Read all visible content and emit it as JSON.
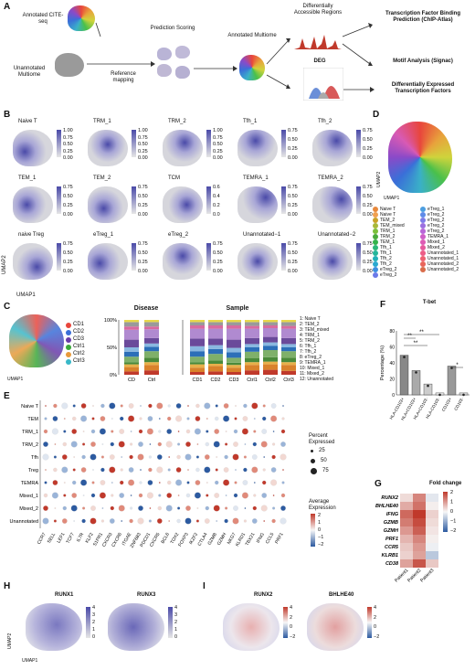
{
  "panelA": {
    "letter": "A",
    "cite": "Annotated CITE-seq",
    "unannotated": "Unannotated Multiome",
    "pred": "Prediction Scoring",
    "refmap": "Reference mapping",
    "annotated": "Annotated Multiome",
    "dar": "Differentially Accessible Regions",
    "deg": "DEG",
    "tfbp": "Transcription Factor Binding Prediction (ChIP-Atlas)",
    "motif": "Motif Analysis (Signac)",
    "detf": "Differentially Expressed Transcription Factors"
  },
  "panelB": {
    "letter": "B",
    "titles": [
      "Naive T",
      "TRM_1",
      "TRM_2",
      "Tfh_1",
      "Tfh_2",
      "TEM_1",
      "TEM_2",
      "TCM",
      "TEMRA_1",
      "TEMRA_2",
      "naive Treg",
      "eTreg_1",
      "eTreg_2",
      "Unannotated−1",
      "Unannotated−2"
    ],
    "ticks_a": [
      "1.00",
      "0.75",
      "0.50",
      "0.25",
      "0.00"
    ],
    "ticks_b": [
      "0.75",
      "0.50",
      "0.25",
      "0.00"
    ],
    "ticks_c": [
      "0.6",
      "0.4",
      "0.2",
      "0.0"
    ],
    "umap1": "UMAP1",
    "umap2": "UMAP2"
  },
  "panelD": {
    "letter": "D",
    "col1": [
      "Naive T",
      "Naive T",
      "TEM_2",
      "TEM_mixed",
      "TRM_1",
      "TRM_2",
      "TEM_1",
      "Tfh_1",
      "Tfh_1",
      "Tfh_2",
      "Tfh_2",
      "eTreg_2",
      "eTreg_2"
    ],
    "col2": [
      "eTreg_1",
      "eTreg_2",
      "eTreg_2",
      "eTreg_2",
      "eTreg_2",
      "TEMRA_1",
      "Mixed_1",
      "Mixed_2",
      "Unannotated_1",
      "Unannotated_1",
      "Unannotated_2",
      "Unannotated_2"
    ],
    "colors1": [
      "#e8893c",
      "#f0a050",
      "#c9a227",
      "#a8b83a",
      "#7bbf3a",
      "#4aaa3a",
      "#34b34a",
      "#2bb877",
      "#25b59a",
      "#22b0b8",
      "#2aa8d0",
      "#3d8fe0",
      "#6b7ae8"
    ],
    "colors2": [
      "#4c9ee0",
      "#5f8be8",
      "#7d7be8",
      "#9b6fe0",
      "#b865d8",
      "#cf5ec8",
      "#dd5bb4",
      "#e65a9d",
      "#ec5c86",
      "#ee6070",
      "#e8655a",
      "#d96c4a"
    ]
  },
  "panelC": {
    "letter": "C",
    "clusters": [
      "CD1",
      "CD2",
      "CD3",
      "Ctrl1",
      "Ctrl2",
      "Ctrl3"
    ],
    "cluster_colors": [
      "#e8463c",
      "#3a6fd8",
      "#6a3aa8",
      "#3aa83a",
      "#e89a3a",
      "#38b8c8"
    ],
    "disease_title": "Disease",
    "sample_title": "Sample",
    "yticks": [
      "100%",
      "50%",
      "0%"
    ],
    "disease_x": [
      "CD",
      "Ctrl"
    ],
    "sample_x": [
      "CD1",
      "CD2",
      "CD3",
      "Ctrl1",
      "Ctrl2",
      "Ctrl3"
    ],
    "legend": [
      "1: Naive T",
      "2: TEM_2",
      "3: TEM_mixed",
      "4: TRM_1",
      "5: TRM_2",
      "6: Tfh_1",
      "7: Tfh_2",
      "8: eTreg_2",
      "9: TEMRA_1",
      "10: Mixed_1",
      "11: Mixed_2",
      "12: Unannotated"
    ]
  },
  "panelE": {
    "letter": "E",
    "rows": [
      "Naive T",
      "TEM",
      "TRM_1",
      "TRM_2",
      "Tfh",
      "Treg",
      "TEMRA",
      "Mixed_1",
      "Mixed_2",
      "Unannotated"
    ],
    "genes": [
      "CCR7",
      "SELL",
      "LEF1",
      "TCF7",
      "IL7R",
      "KLF2",
      "S1PR1",
      "CXCR3",
      "CXCR6",
      "ITGAE",
      "ZNF683",
      "PDCD1",
      "CXCR5",
      "BCL6",
      "TOX2",
      "FOXP3",
      "IKZF2",
      "CTLA4",
      "GZMB",
      "GZMH",
      "NKG7",
      "KLRD1",
      "TBX21",
      "IFNG",
      "CCL5",
      "PRF1"
    ],
    "pct_title": "Percent Expressed",
    "pct": [
      "25",
      "50",
      "75"
    ],
    "avg_title": "Average Expression",
    "avg": [
      "2",
      "1",
      "0",
      "−1",
      "−2"
    ]
  },
  "panelF": {
    "letter": "F",
    "title": "T-bet",
    "ylabel": "Percentage (%)",
    "yticks": [
      "80",
      "60",
      "40",
      "20",
      "0"
    ],
    "sig": [
      "**",
      "**",
      "**",
      "*"
    ],
    "xlabels": [
      "HLA-CD103+",
      "HLA+CD103+",
      "HLA+CD103-",
      "HLA-CD103-",
      "CD103+",
      "CD103-"
    ]
  },
  "panelG": {
    "letter": "G",
    "title": "Fold change",
    "genes": [
      "RUNX2",
      "BHLHE40",
      "IFNG",
      "GZMB",
      "GZMH",
      "PRF1",
      "CCR5",
      "KLRB1",
      "CD38"
    ],
    "patients": [
      "Patient1",
      "Patient2",
      "Patient3"
    ],
    "scale": [
      "2",
      "1",
      "0",
      "−1",
      "−2"
    ]
  },
  "panelH": {
    "letter": "H",
    "g1": "RUNX1",
    "g2": "RUNX3",
    "ticks": [
      "4",
      "3",
      "2",
      "1",
      "0"
    ]
  },
  "panelI": {
    "letter": "I",
    "g1": "RUNX2",
    "g2": "BHLHE40",
    "ticks": [
      "4",
      "2",
      "0",
      "−2"
    ]
  },
  "chart_data": [
    {
      "type": "bar",
      "title": "T-bet",
      "ylabel": "Percentage (%)",
      "categories": [
        "HLA-CD103+",
        "HLA+CD103+",
        "HLA+CD103-",
        "HLA-CD103-",
        "CD103+",
        "CD103-"
      ],
      "values": [
        62,
        38,
        17,
        3,
        45,
        3
      ],
      "ylim": [
        0,
        100
      ]
    },
    {
      "type": "heatmap",
      "title": "Fold change",
      "rows": [
        "RUNX2",
        "BHLHE40",
        "IFNG",
        "GZMB",
        "GZMH",
        "PRF1",
        "CCR5",
        "KLRB1",
        "CD38"
      ],
      "columns": [
        "Patient1",
        "Patient2",
        "Patient3"
      ],
      "values": [
        [
          0.3,
          1.2,
          -0.2
        ],
        [
          0.8,
          1.4,
          0.1
        ],
        [
          1.5,
          2.0,
          0.4
        ],
        [
          1.3,
          1.8,
          0.3
        ],
        [
          1.0,
          1.6,
          0.2
        ],
        [
          0.7,
          1.2,
          0.1
        ],
        [
          0.5,
          1.0,
          -0.1
        ],
        [
          0.4,
          0.9,
          -0.6
        ],
        [
          0.9,
          1.7,
          0.5
        ]
      ]
    }
  ]
}
